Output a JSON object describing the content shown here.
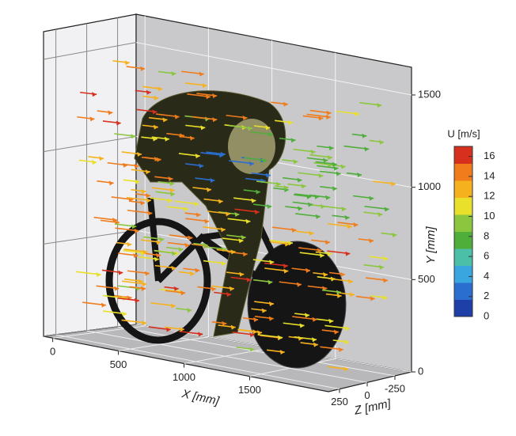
{
  "chart_data": {
    "type": "vector3d",
    "xlabel": "X [mm]",
    "ylabel": "Y [mm]",
    "zlabel": "Z [mm]",
    "xlim": [
      -70,
      2100
    ],
    "xticks": [
      0,
      500,
      1000,
      1500
    ],
    "ylim": [
      0,
      1650
    ],
    "yticks": [
      0,
      500,
      1000,
      1500
    ],
    "zlim": [
      350,
      -400
    ],
    "zticks": [
      250,
      0,
      -250
    ],
    "grid": true,
    "colorbar": {
      "title": "U [m/s]",
      "lim": [
        0,
        17
      ],
      "ticks": [
        0,
        2,
        4,
        6,
        8,
        10,
        12,
        14,
        16
      ],
      "colors": [
        "#1f3fa8",
        "#2a6fd0",
        "#3aa6df",
        "#4cbfa8",
        "#4fae3a",
        "#8cc63f",
        "#e8e02a",
        "#f6b21e",
        "#f07c1c",
        "#d8301e"
      ]
    }
  }
}
